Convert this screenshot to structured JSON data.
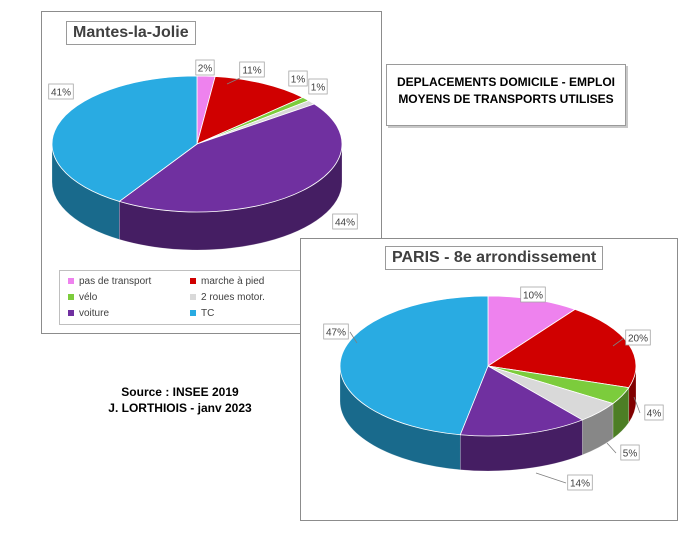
{
  "header": {
    "title_line1": "DEPLACEMENTS DOMICILE - EMPLOI",
    "title_line2": "MOYENS DE TRANSPORTS UTILISES"
  },
  "source": {
    "line1": "Source : INSEE 2019",
    "line2": "J. LORTHIOIS - janv 2023"
  },
  "legend": {
    "items": [
      {
        "label": "pas de transport",
        "color": "#ee82ee"
      },
      {
        "label": "marche à pied",
        "color": "#d00000"
      },
      {
        "label": "vélo",
        "color": "#7ccc3c"
      },
      {
        "label": "2 roues motor.",
        "color": "#d9d9d9"
      },
      {
        "label": "voiture",
        "color": "#7030a0"
      },
      {
        "label": "TC",
        "color": "#29abe2"
      }
    ]
  },
  "chart_data": [
    {
      "type": "pie",
      "title": "Mantes-la-Jolie",
      "categories": [
        "pas de transport",
        "marche à pied",
        "vélo",
        "2 roues motor.",
        "voiture",
        "TC"
      ],
      "values": [
        2,
        11,
        1,
        1,
        44,
        41
      ],
      "labels": [
        "2%",
        "11%",
        "1%",
        "1%",
        "44%",
        "41%"
      ],
      "colors": [
        "#ee82ee",
        "#d00000",
        "#7ccc3c",
        "#d9d9d9",
        "#7030a0",
        "#29abe2"
      ],
      "legend": "bottom"
    },
    {
      "type": "pie",
      "title": "PARIS - 8e arrondissement",
      "categories": [
        "pas de transport",
        "marche à pied",
        "vélo",
        "2 roues motor.",
        "voiture",
        "TC"
      ],
      "values": [
        10,
        20,
        4,
        5,
        14,
        47
      ],
      "labels": [
        "10%",
        "20%",
        "4%",
        "5%",
        "14%",
        "47%"
      ],
      "colors": [
        "#ee82ee",
        "#d00000",
        "#7ccc3c",
        "#d9d9d9",
        "#7030a0",
        "#29abe2"
      ],
      "legend": "none"
    }
  ]
}
